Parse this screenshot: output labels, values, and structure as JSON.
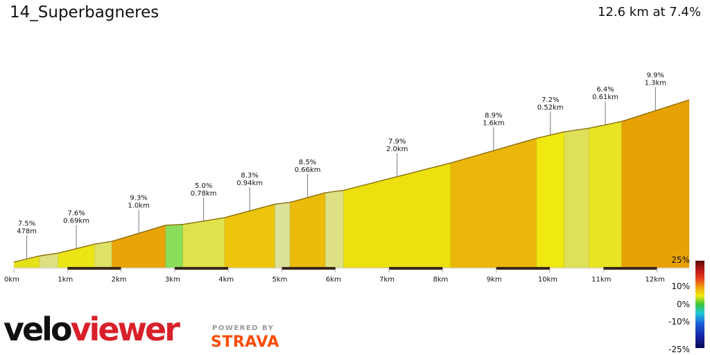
{
  "header": {
    "title": "14_Superbagneres",
    "summary": "12.6 km at 7.4%"
  },
  "chart_data": {
    "type": "area",
    "title": "14_Superbagneres",
    "x_unit": "km",
    "xlim": [
      0,
      12.6
    ],
    "x_ticks": [
      "0km",
      "1km",
      "2km",
      "3km",
      "4km",
      "5km",
      "6km",
      "7km",
      "8km",
      "9km",
      "10km",
      "11km",
      "12km"
    ],
    "segments": [
      {
        "start": 0.0,
        "end": 0.48,
        "gradient": 7.5,
        "color": "#e6e21a",
        "label_pct": "7.5%",
        "label_len": "478m"
      },
      {
        "start": 0.48,
        "end": 0.82,
        "gradient": 4.5,
        "color": "#dde080",
        "label_pct": "",
        "label_len": ""
      },
      {
        "start": 0.82,
        "end": 1.51,
        "gradient": 7.6,
        "color": "#ece516",
        "label_pct": "7.6%",
        "label_len": "0.69km"
      },
      {
        "start": 1.51,
        "end": 1.83,
        "gradient": 5.0,
        "color": "#dfe066",
        "label_pct": "",
        "label_len": ""
      },
      {
        "start": 1.83,
        "end": 2.83,
        "gradient": 9.3,
        "color": "#e9a40a",
        "label_pct": "9.3%",
        "label_len": "1.0km"
      },
      {
        "start": 2.83,
        "end": 3.15,
        "gradient": 1.5,
        "color": "#8ade5a",
        "label_pct": "",
        "label_len": ""
      },
      {
        "start": 3.15,
        "end": 3.93,
        "gradient": 5.0,
        "color": "#dfe24a",
        "label_pct": "5.0%",
        "label_len": "0.78km"
      },
      {
        "start": 3.93,
        "end": 4.87,
        "gradient": 8.3,
        "color": "#ecc50c",
        "label_pct": "8.3%",
        "label_len": "0.94km"
      },
      {
        "start": 4.87,
        "end": 5.15,
        "gradient": 3.5,
        "color": "#dce398",
        "label_pct": "",
        "label_len": ""
      },
      {
        "start": 5.15,
        "end": 5.81,
        "gradient": 8.5,
        "color": "#ebbc0b",
        "label_pct": "8.5%",
        "label_len": "0.66km"
      },
      {
        "start": 5.81,
        "end": 6.15,
        "gradient": 4.0,
        "color": "#dde083",
        "label_pct": "",
        "label_len": ""
      },
      {
        "start": 6.15,
        "end": 8.15,
        "gradient": 7.9,
        "color": "#ece00d",
        "label_pct": "7.9%",
        "label_len": "2.0km"
      },
      {
        "start": 8.15,
        "end": 9.75,
        "gradient": 8.9,
        "color": "#ebb70a",
        "label_pct": "8.9%",
        "label_len": "1.6km"
      },
      {
        "start": 9.75,
        "end": 10.27,
        "gradient": 7.2,
        "color": "#efe811",
        "label_pct": "7.2%",
        "label_len": "0.52km"
      },
      {
        "start": 10.27,
        "end": 10.73,
        "gradient": 4.5,
        "color": "#dee059",
        "label_pct": "",
        "label_len": ""
      },
      {
        "start": 10.73,
        "end": 11.34,
        "gradient": 6.4,
        "color": "#e9e423",
        "label_pct": "6.4%",
        "label_len": "0.61km"
      },
      {
        "start": 11.34,
        "end": 12.6,
        "gradient": 9.9,
        "color": "#e9a205",
        "label_pct": "9.9%",
        "label_len": "1.3km"
      }
    ],
    "legend": {
      "type": "gradient-colorbar",
      "labels": [
        "25%",
        "10%",
        "0%",
        "-10%",
        "-25%"
      ]
    }
  },
  "branding": {
    "velo": "velo",
    "viewer": "viewer",
    "powered_by": "POWERED BY",
    "strava": "STRAVA"
  }
}
